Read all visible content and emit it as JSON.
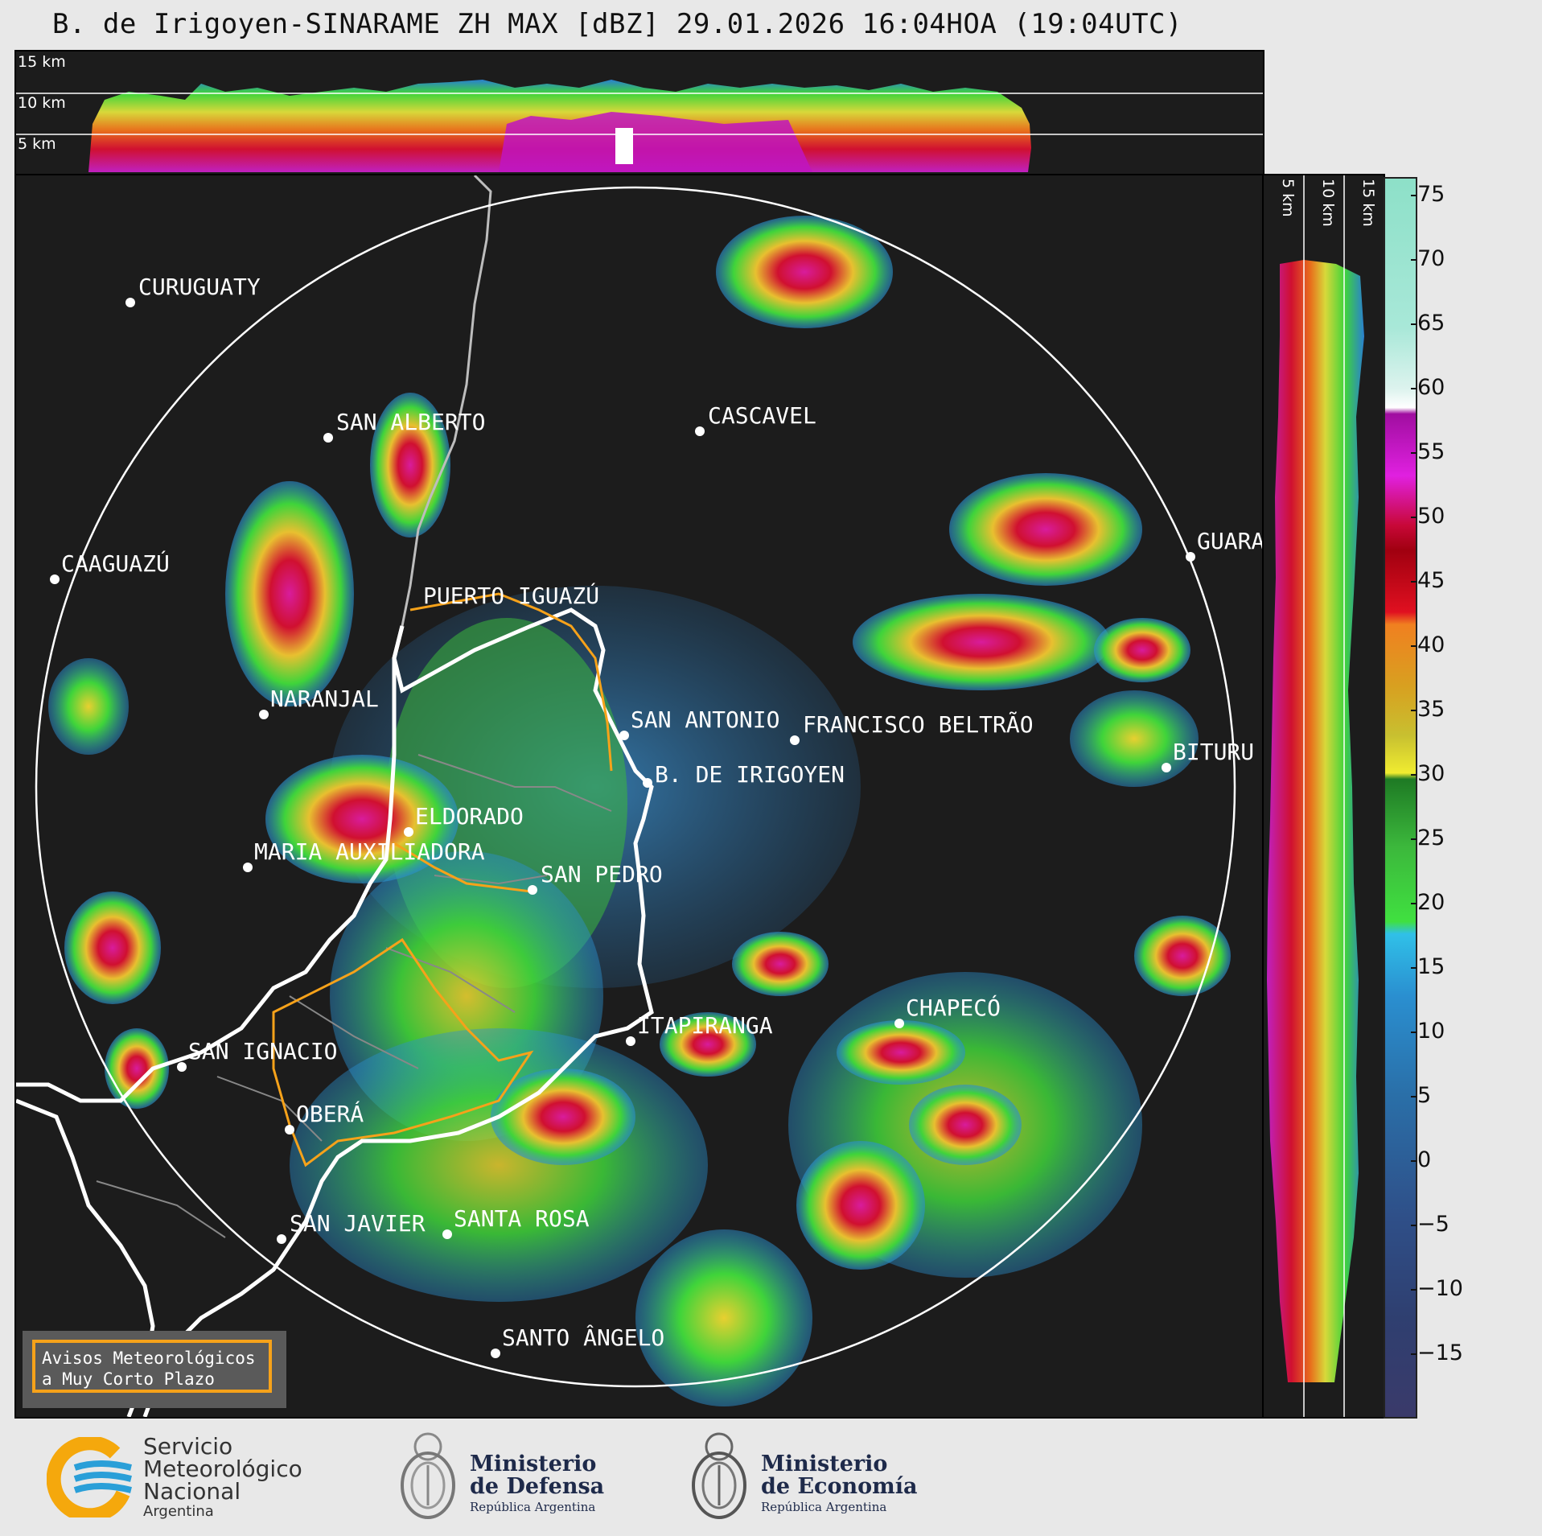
{
  "title": "B. de Irigoyen-SINARAME ZH MAX [dBZ] 29.01.2026 16:04HOA (19:04UTC)",
  "top_panel": {
    "height_labels": [
      "15 km",
      "10 km",
      "5 km"
    ]
  },
  "side_panel": {
    "height_labels": [
      "5 km",
      "10 km",
      "15 km"
    ]
  },
  "colorbar": {
    "ticks": [
      "75",
      "70",
      "65",
      "60",
      "55",
      "50",
      "45",
      "40",
      "35",
      "30",
      "25",
      "20",
      "15",
      "10",
      "5",
      "0",
      "−5",
      "−10",
      "−15"
    ]
  },
  "cities": {
    "curuguaty": "CURUGUATY",
    "san_alberto": "SAN ALBERTO",
    "cascavel": "CASCAVEL",
    "caaguazu": "CAAGUAZÚ",
    "guarapuava": "GUARA",
    "puerto_iguazu": "PUERTO IGUAZÚ",
    "naranjal": "NARANJAL",
    "san_antonio": "SAN ANTONIO",
    "francisco_beltrao": "FRANCISCO BELTRÃO",
    "bituruna": "BITURU",
    "b_de_irigoyen": "B. DE IRIGOYEN",
    "eldorado": "ELDORADO",
    "maria_auxiliadora": "MARIA AUXILIADORA",
    "san_pedro": "SAN PEDRO",
    "chapeco": "CHAPECÓ",
    "itapiranga": "ITAPIRANGA",
    "san_ignacio": "SAN IGNACIO",
    "obera": "OBERÁ",
    "san_javier": "SAN JAVIER",
    "santa_rosa": "SANTA ROSA",
    "santo_angelo": "SANTO ÂNGELO"
  },
  "avisos": {
    "line1": "Avisos Meteorológicos",
    "line2": "a Muy Corto Plazo"
  },
  "logos": {
    "smn": {
      "line1": "Servicio",
      "line2": "Meteorológico",
      "line3": "Nacional",
      "line4": "Argentina"
    },
    "defensa": {
      "line1": "Ministerio",
      "line2": "de Defensa",
      "line3": "República Argentina"
    },
    "economia": {
      "line1": "Ministerio",
      "line2": "de Economía",
      "line3": "República Argentina"
    }
  },
  "colors": {
    "panel_bg": "#1c1c1c",
    "aviso_orange": "#f6a21a",
    "smn_blue": "#2a9fd8",
    "smn_yellow": "#f5a80c"
  }
}
